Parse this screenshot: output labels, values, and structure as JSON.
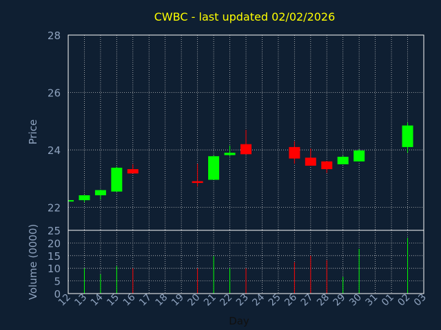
{
  "chart_data": {
    "type": "candlestick",
    "title": "CWBC - last updated 02/02/2026",
    "xlabel": "Day",
    "colors": {
      "background": "#0f1f32",
      "title": "#ffff00",
      "axis_text": "#8fa3bf",
      "frame": "#ffffff",
      "grid": "#c8c8c8",
      "up": "#00ff00",
      "down": "#ff0000"
    },
    "x_ticks": [
      "12",
      "13",
      "14",
      "15",
      "16",
      "17",
      "18",
      "19",
      "20",
      "21",
      "22",
      "23",
      "24",
      "25",
      "26",
      "27",
      "28",
      "29",
      "30",
      "31",
      "01",
      "02",
      "03"
    ],
    "price_panel": {
      "ylabel": "Price",
      "ylim": [
        21.2,
        28
      ],
      "yticks": [
        "22",
        "24",
        "26",
        "28"
      ],
      "grid": true
    },
    "volume_panel": {
      "ylabel": "Volume (0000)",
      "ylim": [
        0,
        25
      ],
      "yticks": [
        "0",
        "5",
        "10",
        "15",
        "20",
        "25"
      ],
      "grid": true
    },
    "candles": [
      {
        "day": "12",
        "open": 22.22,
        "high": 22.25,
        "low": 22.18,
        "close": 22.25,
        "volume": 0
      },
      {
        "day": "13",
        "open": 22.25,
        "high": 22.43,
        "low": 22.18,
        "close": 22.42,
        "volume": 10
      },
      {
        "day": "14",
        "open": 22.42,
        "high": 22.62,
        "low": 22.27,
        "close": 22.6,
        "volume": 7.6
      },
      {
        "day": "15",
        "open": 22.55,
        "high": 23.42,
        "low": 22.55,
        "close": 23.38,
        "volume": 10.8
      },
      {
        "day": "16",
        "open": 23.33,
        "high": 23.5,
        "low": 23.18,
        "close": 23.18,
        "volume": 10
      },
      {
        "day": "20",
        "open": 22.91,
        "high": 23.52,
        "low": 22.72,
        "close": 22.85,
        "volume": 10
      },
      {
        "day": "21",
        "open": 22.96,
        "high": 23.8,
        "low": 22.96,
        "close": 23.78,
        "volume": 14.8
      },
      {
        "day": "22",
        "open": 23.82,
        "high": 24.15,
        "low": 23.78,
        "close": 23.9,
        "volume": 10
      },
      {
        "day": "23",
        "open": 24.2,
        "high": 24.7,
        "low": 23.85,
        "close": 23.85,
        "volume": 10
      },
      {
        "day": "26",
        "open": 24.1,
        "high": 24.3,
        "low": 23.52,
        "close": 23.7,
        "volume": 12.4
      },
      {
        "day": "27",
        "open": 23.73,
        "high": 24.05,
        "low": 23.45,
        "close": 23.45,
        "volume": 15
      },
      {
        "day": "28",
        "open": 23.6,
        "high": 23.62,
        "low": 23.2,
        "close": 23.33,
        "volume": 13.2
      },
      {
        "day": "29",
        "open": 23.5,
        "high": 23.8,
        "low": 23.5,
        "close": 23.76,
        "volume": 6.6
      },
      {
        "day": "30",
        "open": 23.6,
        "high": 24.02,
        "low": 23.6,
        "close": 23.98,
        "volume": 17.7
      },
      {
        "day": "02",
        "open": 24.1,
        "high": 24.95,
        "low": 23.9,
        "close": 24.85,
        "volume": 22
      }
    ]
  }
}
